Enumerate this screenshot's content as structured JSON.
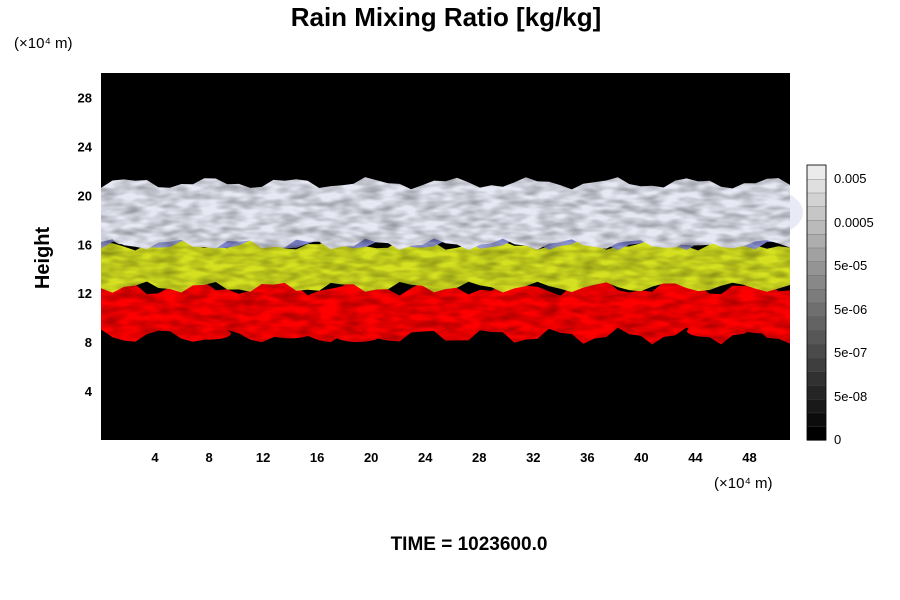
{
  "chart_data": {
    "type": "heatmap",
    "title": "Rain Mixing Ratio [kg/kg]",
    "ylabel": "Height",
    "x_unit": "(×10⁴ m)",
    "y_unit": "(×10⁴ m)",
    "xlim": [
      0,
      51
    ],
    "ylim": [
      0,
      30
    ],
    "x_ticks": [
      "4",
      "8",
      "12",
      "16",
      "20",
      "24",
      "28",
      "32",
      "36",
      "40",
      "44",
      "48"
    ],
    "y_ticks": [
      "4",
      "8",
      "12",
      "16",
      "20",
      "24",
      "28"
    ],
    "colorbar": {
      "ticks": [
        "0.005",
        "0.0005",
        "5e-05",
        "5e-06",
        "5e-07",
        "5e-08",
        "0"
      ],
      "values": [
        0.005,
        0.0005,
        5e-05,
        5e-06,
        5e-07,
        5e-08,
        0
      ]
    },
    "layers": [
      {
        "color": "#ff0000",
        "y_range": [
          8.5,
          12.5
        ]
      },
      {
        "color": "#d4e020",
        "y_range": [
          12.5,
          16
        ]
      },
      {
        "color": "#8e95e6",
        "y_range": [
          16,
          19.5
        ]
      },
      {
        "color": "#e6e8f4",
        "y_range": [
          16,
          21
        ]
      }
    ],
    "colors": {
      "background": "#000000"
    }
  },
  "footer": {
    "time_label": "TIME = 1023600.0"
  }
}
